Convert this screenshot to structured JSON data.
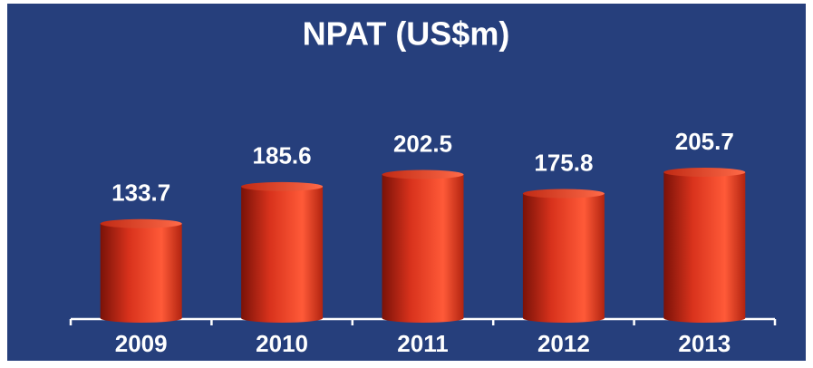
{
  "chart_data": {
    "type": "bar",
    "title": "NPAT (US$m)",
    "categories": [
      "2009",
      "2010",
      "2011",
      "2012",
      "2013"
    ],
    "values": [
      133.7,
      185.6,
      202.5,
      175.8,
      205.7
    ],
    "color": "#e8331c"
  }
}
